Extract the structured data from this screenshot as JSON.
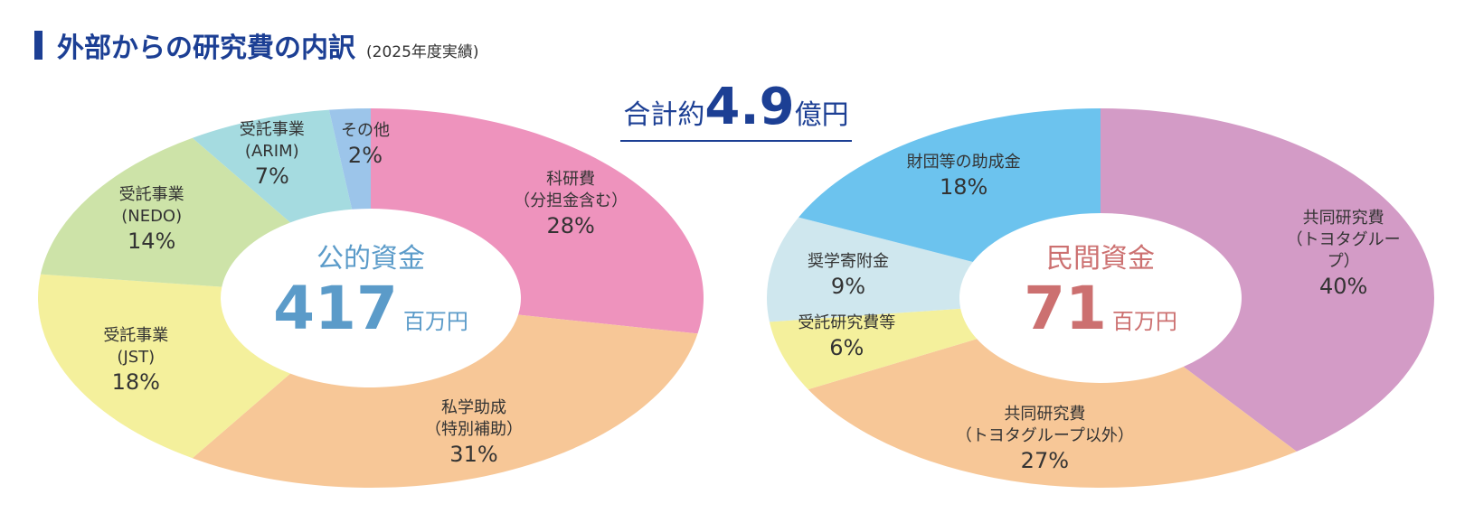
{
  "title": "外部からの研究費の内訳",
  "subtitle": "(2025年度実績)",
  "total": {
    "prefix": "合計約",
    "value": 4.9,
    "unit": "億円"
  },
  "chart_data": [
    {
      "type": "pie",
      "center_title": "公的資金",
      "center_value": 417,
      "center_unit": "百万円",
      "center_color": "#5b9bc9",
      "categories": [
        "科研費\n（分担金含む）",
        "私学助成\n（特別補助）",
        "受託事業\n(JST)",
        "受託事業\n(NEDO)",
        "受託事業\n(ARIM)",
        "その他"
      ],
      "values": [
        28,
        31,
        18,
        14,
        7,
        2
      ],
      "value_labels": [
        "28%",
        "31%",
        "18%",
        "14%",
        "7%",
        "2%"
      ],
      "colors": [
        "#ee93bd",
        "#f7c797",
        "#f4f09c",
        "#cde3a8",
        "#a5dbe0",
        "#9cc5ea"
      ]
    },
    {
      "type": "pie",
      "center_title": "民間資金",
      "center_value": 71,
      "center_unit": "百万円",
      "center_color": "#cc7070",
      "categories": [
        "共同研究費\n（トヨタグループ）",
        "共同研究費\n（トヨタグループ以外）",
        "受託研究費等",
        "奨学寄附金",
        "財団等の助成金"
      ],
      "values": [
        40,
        27,
        6,
        9,
        18
      ],
      "value_labels": [
        "40%",
        "27%",
        "6%",
        "9%",
        "18%"
      ],
      "colors": [
        "#d39bc6",
        "#f7c797",
        "#f4f09c",
        "#cfe7ee",
        "#6cc3ee"
      ]
    }
  ]
}
